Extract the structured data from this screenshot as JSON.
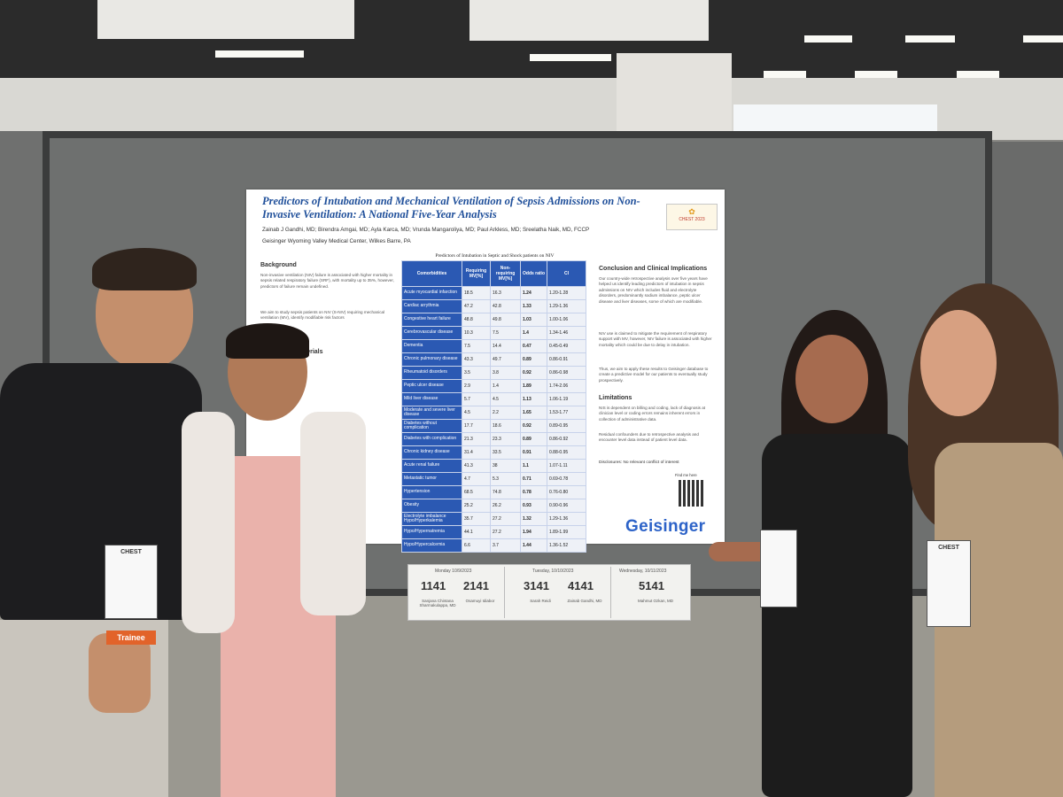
{
  "poster": {
    "title": "Predictors of Intubation and Mechanical Ventilation of Sepsis Admissions on Non-Invasive Ventilation: A National Five-Year Analysis",
    "authors": "Zainab J Gandhi, MD; Birendra Amgai, MD; Ayla Karca, MD; Vrunda Mangaroliya, MD; Paul Arkless, MD; Sreelatha Naik, MD, FCCP",
    "affiliation": "Geisinger Wyoming Valley Medical Center, Wilkes Barre, PA",
    "background_heading": "Background",
    "background_text": "Non-invasive ventilation (NIV) failure is associated with higher mortality in sepsis related respiratory failure (SRF), with mortality up to 35%, however, predictors of failure remain undefined.",
    "aim_text": "We aim to study sepsis patients on NIV (S-NIV) requiring mechanical ventilation (MV), identify modifiable risk factors",
    "methods_heading": "aterials",
    "table_title": "Predictors of Intubation in Septic and Shock patients on NIV",
    "table_headers": [
      "Comorbidities",
      "Requiring MV[%]",
      "Non-requiring MV[%]",
      "Odds ratio",
      "CI"
    ],
    "table_rows": [
      [
        "Acute myocardial infarction",
        "18.5",
        "16.3",
        "1.24",
        "1.20-1.28"
      ],
      [
        "Cardiac arrythmia",
        "47.2",
        "42.8",
        "1.33",
        "1.29-1.36"
      ],
      [
        "Congestive heart failure",
        "48.8",
        "49.8",
        "1.03",
        "1.00-1.06"
      ],
      [
        "Cerebrovascular disease",
        "10.3",
        "7.5",
        "1.4",
        "1.34-1.46"
      ],
      [
        "Dementia",
        "7.5",
        "14.4",
        "0.47",
        "0.45-0.49"
      ],
      [
        "Chronic pulmonary disease",
        "43.3",
        "49.7",
        "0.89",
        "0.86-0.91"
      ],
      [
        "Rheumatoid disorders",
        "3.5",
        "3.8",
        "0.92",
        "0.86-0.98"
      ],
      [
        "Peptic ulcer disease",
        "2.9",
        "1.4",
        "1.89",
        "1.74-2.06"
      ],
      [
        "Mild liver disease",
        "5.7",
        "4.5",
        "1.13",
        "1.06-1.19"
      ],
      [
        "Moderate and severe liver disease",
        "4.5",
        "2.2",
        "1.65",
        "1.53-1.77"
      ],
      [
        "Diabetes without complication",
        "17.7",
        "18.6",
        "0.92",
        "0.89-0.95"
      ],
      [
        "Diabetes with complication",
        "21.3",
        "23.3",
        "0.89",
        "0.86-0.92"
      ],
      [
        "Chronic kidney disease",
        "31.4",
        "33.5",
        "0.91",
        "0.88-0.95"
      ],
      [
        "Acute renal failure",
        "41.3",
        "38",
        "1.1",
        "1.07-1.11"
      ],
      [
        "Metastatic tumor",
        "4.7",
        "5.3",
        "0.71",
        "0.69-0.78"
      ],
      [
        "Hypertension",
        "68.5",
        "74.8",
        "0.78",
        "0.76-0.80"
      ],
      [
        "Obesity",
        "25.2",
        "26.2",
        "0.93",
        "0.90-0.96"
      ],
      [
        "Electrolyte imbalance Hypo/Hyperkalemia",
        "35.7",
        "27.2",
        "1.32",
        "1.29-1.36"
      ],
      [
        "Hypo/Hypernatremia",
        "44.1",
        "27.2",
        "1.94",
        "1.89-1.99"
      ],
      [
        "Hypo/Hypercalcemia",
        "6.6",
        "3.7",
        "1.44",
        "1.36-1.52"
      ]
    ],
    "conclusion_heading": "Conclusion and Clinical Implications",
    "conclusion_text": "Our country-wide retrospective analysis over five years have helped us identify leading predictors of intubation in sepsis admissions on NIV which includes fluid and electrolyte disorders, predominantly sodium imbalance, peptic ulcer disease and liver diseases, some of which are modifiable.",
    "conclusion_text_2": "NIV use is claimed to mitigate the requirement of respiratory support with MV, however, NIV failure is associated with higher mortality which could be due to delay in intubation.",
    "conclusion_text_3": "Thus, we aim to apply these results to Geisinger database to create a predictive model for our patients to eventually study prospectively.",
    "limitations_heading": "Limitations",
    "limitations_text": "NIS is dependent on billing and coding, lack of diagnosis at clinician level or coding errors remains inherent errors in collection of administrative data.",
    "limitations_text_2": "Residual confounders due to retrospective analysis and encounter level data instead of patient level data.",
    "disclosures": "Disclosures: No relevant conflict of interest",
    "find_me_label": "Find me here",
    "brand": "Geisinger",
    "logo_text": "CHEST 2023"
  },
  "schedule": {
    "days": [
      {
        "label": "Monday 10/9/2023",
        "boards": [
          {
            "num": "1141",
            "name": "Sanjana Chintana Sharmakulappa, MD"
          },
          {
            "num": "2141",
            "name": "Osamuyi Idiabor"
          }
        ]
      },
      {
        "label": "Tuesday, 10/10/2023",
        "boards": [
          {
            "num": "3141",
            "name": "Sarah Reidi"
          },
          {
            "num": "4141",
            "name": "Zainab Gandhi, MD"
          }
        ]
      },
      {
        "label": "Wednesday, 10/11/2023",
        "boards": [
          {
            "num": "5141",
            "name": "Mahmut Ozkan, MD"
          }
        ]
      }
    ]
  },
  "badges": {
    "trainee": "Trainee",
    "chest": "CHEST"
  },
  "colors": {
    "poster_blue": "#2b59b3",
    "brand_blue": "#2d63c8",
    "trainee_orange": "#e2632a"
  }
}
